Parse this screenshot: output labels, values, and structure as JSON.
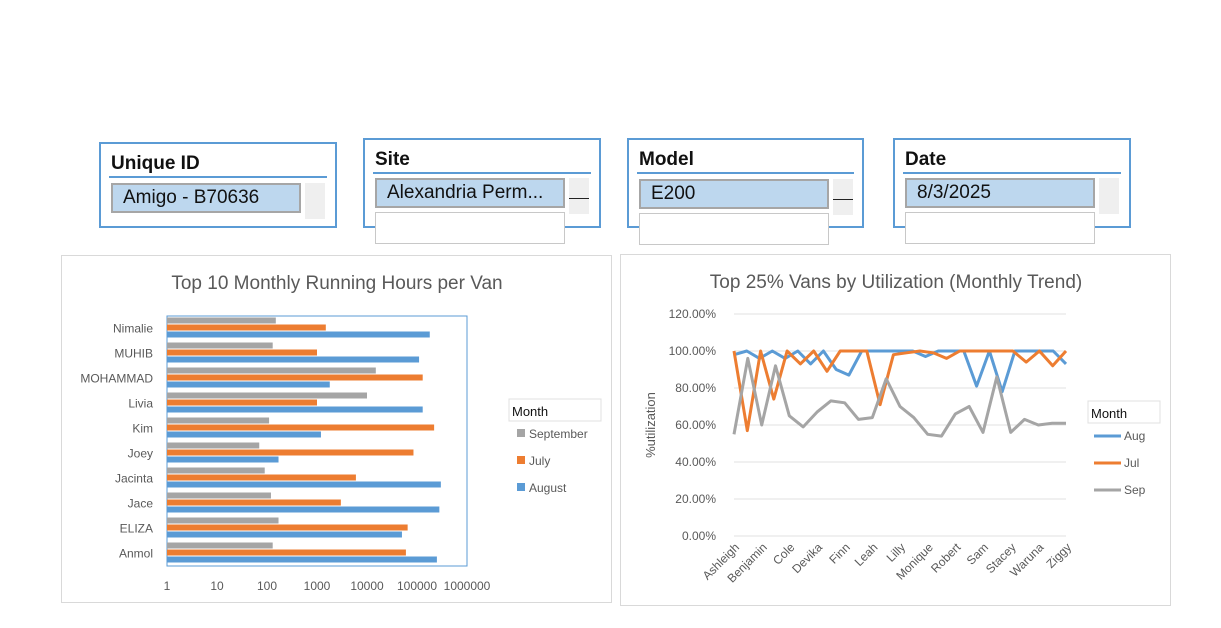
{
  "slicers": [
    {
      "title": "Unique ID",
      "selected": "Amigo - B70636"
    },
    {
      "title": "Site",
      "selected": "Alexandria Perm..."
    },
    {
      "title": "Model",
      "selected": "E200"
    },
    {
      "title": "Date",
      "selected": "8/3/2025"
    }
  ],
  "chart_data": [
    {
      "type": "bar",
      "orientation": "horizontal",
      "title": "Top 10 Monthly Running Hours per Van",
      "scale": "log",
      "xticks": [
        "1",
        "10",
        "100",
        "1000",
        "10000",
        "100000",
        "1000000"
      ],
      "categories": [
        "Nimalie",
        "MUHIB",
        "MOHAMMAD",
        "Livia",
        "Kim",
        "Joey",
        "Jacinta",
        "Jace",
        "ELIZA",
        "Anmol"
      ],
      "legend_title": "Month",
      "legend_position": "right",
      "series": [
        {
          "name": "September",
          "color": "#a5a5a5",
          "values": [
            150,
            130,
            15000,
            10000,
            110,
            70,
            90,
            120,
            170,
            130
          ]
        },
        {
          "name": "July",
          "color": "#ed7d31",
          "values": [
            1500,
            1000,
            130000,
            1000,
            220000,
            85000,
            6000,
            3000,
            65000,
            60000
          ]
        },
        {
          "name": "August",
          "color": "#5b9bd5",
          "values": [
            180000,
            110000,
            1800,
            130000,
            1200,
            170,
            300000,
            280000,
            50000,
            250000
          ]
        }
      ]
    },
    {
      "type": "line",
      "title": "Top 25% Vans by Utilization (Monthly Trend)",
      "ylabel": "%utilization",
      "ylim": [
        0,
        1.2
      ],
      "yticks": [
        "0.00%",
        "20.00%",
        "40.00%",
        "60.00%",
        "80.00%",
        "100.00%",
        "120.00%"
      ],
      "xlabels": [
        "Ashleigh",
        "Benjamin",
        "Cole",
        "Devika",
        "Finn",
        "Leah",
        "Lilly",
        "Monique",
        "Robert",
        "Sam",
        "Stacey",
        "Waruna",
        "Ziggy"
      ],
      "legend_title": "Month",
      "legend_position": "right",
      "series": [
        {
          "name": "Aug",
          "color": "#5b9bd5",
          "values": [
            0.98,
            1.0,
            0.96,
            1.0,
            0.96,
            1.0,
            0.93,
            1.0,
            0.9,
            0.87,
            1.0,
            1.0,
            1.0,
            1.0,
            1.0,
            0.97,
            1.0,
            1.0,
            1.0,
            0.81,
            1.0,
            0.78,
            1.0,
            1.0,
            1.0,
            1.0,
            0.93
          ]
        },
        {
          "name": "Jul",
          "color": "#ed7d31",
          "values": [
            1.0,
            0.57,
            1.0,
            0.74,
            1.0,
            0.93,
            1.0,
            0.89,
            1.0,
            1.0,
            1.0,
            0.71,
            0.98,
            0.99,
            1.0,
            0.99,
            0.96,
            1.0,
            1.0,
            1.0,
            1.0,
            1.0,
            0.94,
            1.0,
            0.92,
            1.0
          ]
        },
        {
          "name": "Sep",
          "color": "#a5a5a5",
          "values": [
            0.55,
            0.96,
            0.6,
            0.92,
            0.65,
            0.59,
            0.67,
            0.73,
            0.72,
            0.63,
            0.64,
            0.85,
            0.7,
            0.64,
            0.55,
            0.54,
            0.66,
            0.7,
            0.56,
            0.86,
            0.56,
            0.63,
            0.6,
            0.61,
            0.61
          ]
        }
      ]
    }
  ]
}
